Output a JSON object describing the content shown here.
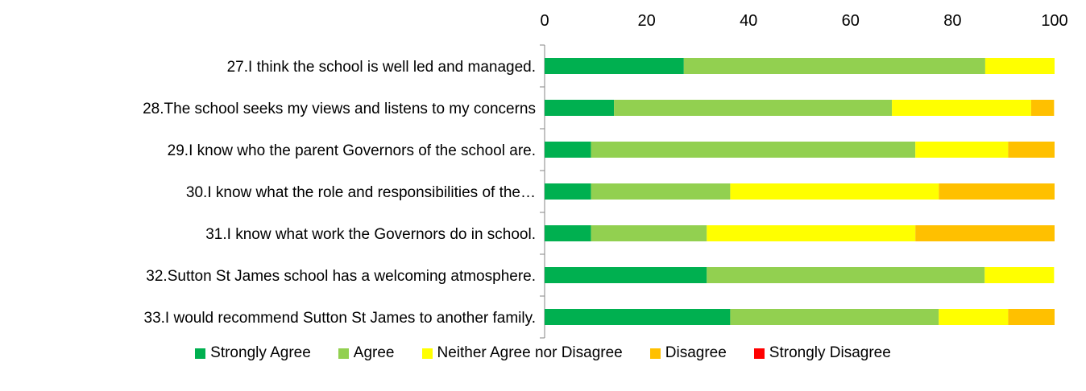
{
  "chart_data": {
    "type": "bar",
    "orientation": "horizontal",
    "stacked": true,
    "categories": [
      "27.I think the school is well led and managed.",
      "28.The school seeks my views and listens to my concerns",
      "29.I know who the parent Governors of the school are.",
      "30.I know what the role and responsibilities of the…",
      "31.I know what work the Governors do in school.",
      "32.Sutton St James school has a welcoming atmosphere.",
      "33.I would recommend Sutton St James to another family."
    ],
    "series": [
      {
        "name": "Strongly Agree",
        "color": "#00b050",
        "values": [
          27.3,
          13.6,
          9.1,
          9.1,
          9.1,
          31.8,
          36.4
        ]
      },
      {
        "name": "Agree",
        "color": "#92d050",
        "values": [
          59.1,
          54.5,
          63.6,
          27.3,
          22.7,
          54.5,
          40.9
        ]
      },
      {
        "name": "Neither Agree nor Disagree",
        "color": "#ffff00",
        "values": [
          13.6,
          27.3,
          18.2,
          40.9,
          40.9,
          13.6,
          13.6
        ]
      },
      {
        "name": "Disagree",
        "color": "#ffc000",
        "values": [
          0,
          4.5,
          9.1,
          22.7,
          27.3,
          0,
          9.1
        ]
      },
      {
        "name": "Strongly Disagree",
        "color": "#ff0000",
        "values": [
          0,
          0,
          0,
          0,
          0,
          0,
          0
        ]
      }
    ],
    "xlim": [
      0,
      100
    ],
    "x_ticks": [
      "0",
      "20",
      "40",
      "60",
      "80",
      "100"
    ],
    "axis_position": "top",
    "grid": false,
    "legend_position": "bottom"
  }
}
